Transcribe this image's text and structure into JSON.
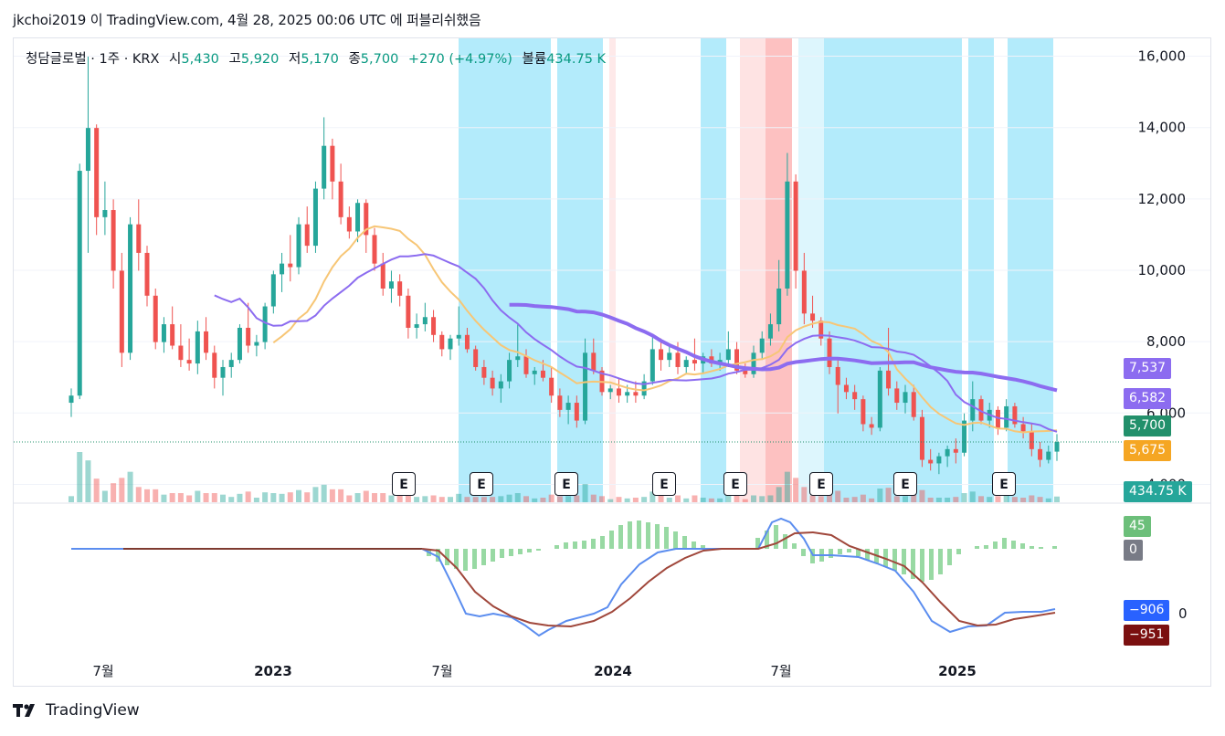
{
  "publication": {
    "text": "jkchoi2019 이 TradingView.com, 4월 28, 2025 00:06 UTC 에 퍼블리쉬했음"
  },
  "legend": {
    "symbol": "청담글로벌 · 1주 · KRX",
    "open_label": "시",
    "open": "5,430",
    "high_label": "고",
    "high": "5,920",
    "low_label": "저",
    "low": "5,170",
    "close_label": "종",
    "close": "5,700",
    "change": "+270 (+4.97%)",
    "volume_label": "볼륨",
    "volume": "434.75 K"
  },
  "footer": {
    "brand": "TradingView"
  },
  "colors": {
    "up": "#26a69a",
    "down": "#ef5350",
    "ma_fast": "#f7c676",
    "ma_mid": "#8c6cf0",
    "ma_slow": "#8c6cf0",
    "band_blue": "#b3ebfb",
    "band_red": "#fdc1c1",
    "macd": "#5b8def",
    "signal": "#a0473b",
    "hist_pos": "#7ecf8c"
  },
  "price_tags": [
    {
      "label": "7,537",
      "color": "#8c6cf0",
      "price": 7537
    },
    {
      "label": "6,582",
      "color": "#8c6cf0",
      "price": 6582
    },
    {
      "label": "5,700",
      "color": "#22906b",
      "price": 5700
    },
    {
      "label": "5,675",
      "color": "#f5a623",
      "price": 5675
    },
    {
      "label": "434.75 K",
      "color": "#26a69a",
      "price": null
    }
  ],
  "macd_tags": [
    {
      "label": "45",
      "color": "#6cbf7a"
    },
    {
      "label": "0",
      "color": "#787b86"
    },
    {
      "label": "−906",
      "color": "#2962ff"
    },
    {
      "label": "−951",
      "color": "#7b1010"
    }
  ],
  "macd_axis_label": "0",
  "earnings_label": "E",
  "chart_data": {
    "type": "candlestick",
    "timeframe": "1주",
    "x_ticks": [
      "7월",
      "2023",
      "7월",
      "2024",
      "7월",
      "2025"
    ],
    "y_ticks": [
      16000,
      14000,
      12000,
      10000,
      8000,
      6000,
      4000
    ],
    "y_tick_labels": [
      "16,000",
      "14,000",
      "12,000",
      "10,000",
      "8,000",
      "6,000",
      "4,000"
    ],
    "ylim": [
      3500,
      16500
    ],
    "last_close": 5700,
    "indicators": {
      "ma_slow_last": 7537,
      "ma_mid_last": 6582,
      "ma_fast_last": 5675,
      "macd_last": -906,
      "signal_last": -951,
      "hist_last": 45
    },
    "candles_approx": [
      [
        6800,
        7200,
        6400,
        7000
      ],
      [
        7000,
        13500,
        6900,
        13300
      ],
      [
        13300,
        16500,
        11000,
        14500
      ],
      [
        14500,
        14600,
        11500,
        12000
      ],
      [
        12000,
        13000,
        11500,
        12200
      ],
      [
        12200,
        12500,
        10000,
        10500
      ],
      [
        10500,
        11000,
        7800,
        8200
      ],
      [
        8200,
        12000,
        8000,
        11800
      ],
      [
        11800,
        12500,
        10500,
        11000
      ],
      [
        11000,
        11200,
        9500,
        9800
      ],
      [
        9800,
        10000,
        8300,
        8500
      ],
      [
        8500,
        9200,
        8200,
        9000
      ],
      [
        9000,
        9500,
        8300,
        8400
      ],
      [
        8400,
        9000,
        7800,
        8000
      ],
      [
        8000,
        8600,
        7700,
        7900
      ],
      [
        7900,
        9100,
        7600,
        8800
      ],
      [
        8800,
        9200,
        8000,
        8200
      ],
      [
        8200,
        8400,
        7200,
        7500
      ],
      [
        7500,
        8000,
        7000,
        7800
      ],
      [
        7800,
        8200,
        7500,
        8000
      ],
      [
        8000,
        9000,
        7900,
        8900
      ],
      [
        8900,
        9600,
        8200,
        8400
      ],
      [
        8400,
        8700,
        8100,
        8500
      ],
      [
        8500,
        9600,
        8300,
        9500
      ],
      [
        9500,
        10500,
        9300,
        10400
      ],
      [
        10400,
        11000,
        9900,
        10700
      ],
      [
        10700,
        11500,
        10200,
        10600
      ],
      [
        10600,
        12000,
        10400,
        11800
      ],
      [
        11800,
        12300,
        11000,
        11200
      ],
      [
        11200,
        13000,
        11000,
        12800
      ],
      [
        12800,
        14800,
        12500,
        14000
      ],
      [
        14000,
        14200,
        12500,
        13000
      ],
      [
        13000,
        13500,
        11800,
        12000
      ],
      [
        12000,
        12300,
        11400,
        11600
      ],
      [
        11600,
        12500,
        11300,
        12400
      ],
      [
        12400,
        12500,
        11000,
        11500
      ],
      [
        11500,
        11700,
        10500,
        10700
      ],
      [
        10700,
        11000,
        9800,
        10000
      ],
      [
        10000,
        10500,
        9600,
        10200
      ],
      [
        10200,
        10400,
        9500,
        9800
      ],
      [
        9800,
        10000,
        8600,
        8900
      ],
      [
        8900,
        9300,
        8600,
        9000
      ],
      [
        9000,
        9600,
        8800,
        9200
      ],
      [
        9200,
        9400,
        8500,
        8700
      ],
      [
        8700,
        8800,
        8100,
        8300
      ],
      [
        8300,
        8700,
        8000,
        8600
      ],
      [
        8600,
        9500,
        8400,
        8700
      ],
      [
        8700,
        8900,
        8200,
        8300
      ],
      [
        8300,
        8400,
        7700,
        7800
      ],
      [
        7800,
        8000,
        7300,
        7500
      ],
      [
        7500,
        7700,
        7000,
        7200
      ],
      [
        7200,
        7600,
        6800,
        7400
      ],
      [
        7400,
        8200,
        7200,
        8000
      ],
      [
        8000,
        9000,
        7800,
        8100
      ],
      [
        8100,
        8300,
        7500,
        7600
      ],
      [
        7600,
        7800,
        7300,
        7700
      ],
      [
        7700,
        8000,
        7400,
        7500
      ],
      [
        7500,
        7800,
        6800,
        7000
      ],
      [
        7000,
        7200,
        6400,
        6600
      ],
      [
        6600,
        7000,
        6200,
        6800
      ],
      [
        6800,
        7000,
        6100,
        6300
      ],
      [
        6300,
        8600,
        6200,
        8200
      ],
      [
        8200,
        8600,
        7600,
        7700
      ],
      [
        7700,
        7800,
        7000,
        7100
      ],
      [
        7100,
        7300,
        6900,
        7200
      ],
      [
        7200,
        7500,
        6800,
        7000
      ],
      [
        7000,
        7300,
        6800,
        7100
      ],
      [
        7100,
        7400,
        6800,
        7000
      ],
      [
        7000,
        7600,
        6900,
        7400
      ],
      [
        7400,
        8700,
        7300,
        8300
      ],
      [
        8300,
        8600,
        7700,
        8000
      ],
      [
        8000,
        8400,
        7800,
        8200
      ],
      [
        8200,
        8500,
        7600,
        7800
      ],
      [
        7800,
        8100,
        7600,
        8000
      ],
      [
        8000,
        8600,
        7700,
        7900
      ],
      [
        7900,
        8200,
        7600,
        8100
      ],
      [
        8100,
        8300,
        7800,
        7900
      ],
      [
        7900,
        8200,
        7700,
        8000
      ],
      [
        8000,
        8800,
        7800,
        8300
      ],
      [
        8300,
        8500,
        7600,
        7700
      ],
      [
        7700,
        7900,
        7500,
        7600
      ],
      [
        7600,
        8400,
        7500,
        8200
      ],
      [
        8200,
        8800,
        8000,
        8600
      ],
      [
        8600,
        9300,
        8400,
        9000
      ],
      [
        9000,
        10800,
        8800,
        10000
      ],
      [
        10000,
        13800,
        9800,
        13000
      ],
      [
        13000,
        13200,
        10000,
        10500
      ],
      [
        10500,
        11000,
        9000,
        9300
      ],
      [
        9300,
        9800,
        8900,
        9100
      ],
      [
        9100,
        9200,
        8400,
        8600
      ],
      [
        8600,
        8800,
        7600,
        7800
      ],
      [
        7800,
        8000,
        6500,
        7300
      ],
      [
        7300,
        7500,
        6900,
        7100
      ],
      [
        7100,
        7300,
        6600,
        6900
      ],
      [
        6900,
        7000,
        6000,
        6200
      ],
      [
        6200,
        6400,
        5900,
        6100
      ],
      [
        6100,
        7800,
        6000,
        7700
      ],
      [
        7700,
        8900,
        7000,
        7200
      ],
      [
        7200,
        7400,
        6600,
        6800
      ],
      [
        6800,
        7300,
        6500,
        7100
      ],
      [
        7100,
        7300,
        6300,
        6400
      ],
      [
        6400,
        6600,
        5000,
        5200
      ],
      [
        5200,
        5500,
        4900,
        5100
      ],
      [
        5100,
        5400,
        4800,
        5300
      ],
      [
        5300,
        5600,
        5000,
        5500
      ],
      [
        5500,
        5800,
        5100,
        5400
      ],
      [
        5400,
        6500,
        5300,
        6300
      ],
      [
        6300,
        7400,
        6000,
        6900
      ],
      [
        6900,
        7000,
        6200,
        6300
      ],
      [
        6300,
        6800,
        6100,
        6600
      ],
      [
        6600,
        6700,
        5900,
        6100
      ],
      [
        6100,
        6900,
        6000,
        6700
      ],
      [
        6700,
        6800,
        6100,
        6200
      ],
      [
        6200,
        6400,
        5800,
        6000
      ],
      [
        6000,
        6200,
        5300,
        5500
      ],
      [
        5500,
        5700,
        5000,
        5200
      ],
      [
        5200,
        5600,
        5100,
        5430
      ],
      [
        5430,
        5920,
        5170,
        5700
      ]
    ]
  }
}
